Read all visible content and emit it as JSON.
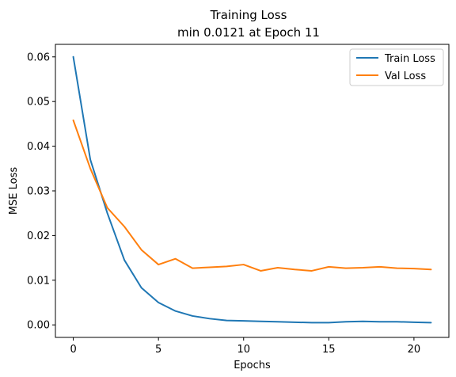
{
  "chart_data": {
    "type": "line",
    "title": "Training Loss",
    "subtitle": "min 0.0121 at Epoch 11",
    "xlabel": "Epochs",
    "ylabel": "MSE Loss",
    "xlim": [
      -1.05,
      22.05
    ],
    "ylim": [
      -0.0028,
      0.0628
    ],
    "xticks": [
      0,
      5,
      10,
      15,
      20
    ],
    "yticks": [
      0.0,
      0.01,
      0.02,
      0.03,
      0.04,
      0.05,
      0.06
    ],
    "ytick_labels": [
      "0.00",
      "0.01",
      "0.02",
      "0.03",
      "0.04",
      "0.05",
      "0.06"
    ],
    "grid": false,
    "legend_position": "top-right",
    "x": [
      0,
      1,
      2,
      3,
      4,
      5,
      6,
      7,
      8,
      9,
      10,
      11,
      12,
      13,
      14,
      15,
      16,
      17,
      18,
      19,
      20,
      21
    ],
    "series": [
      {
        "name": "Train Loss",
        "color": "#1f77b4",
        "values": [
          0.06,
          0.037,
          0.025,
          0.0145,
          0.0083,
          0.005,
          0.0031,
          0.002,
          0.0014,
          0.001,
          0.0009,
          0.0008,
          0.0007,
          0.0006,
          0.0005,
          0.0005,
          0.0007,
          0.0008,
          0.0007,
          0.0007,
          0.0006,
          0.0005
        ]
      },
      {
        "name": "Val Loss",
        "color": "#ff7f0e",
        "values": [
          0.0458,
          0.035,
          0.0262,
          0.022,
          0.0168,
          0.0135,
          0.0148,
          0.0127,
          0.0129,
          0.0131,
          0.0135,
          0.0121,
          0.0128,
          0.0124,
          0.0121,
          0.013,
          0.0127,
          0.0128,
          0.013,
          0.0127,
          0.0126,
          0.0124
        ]
      }
    ]
  }
}
